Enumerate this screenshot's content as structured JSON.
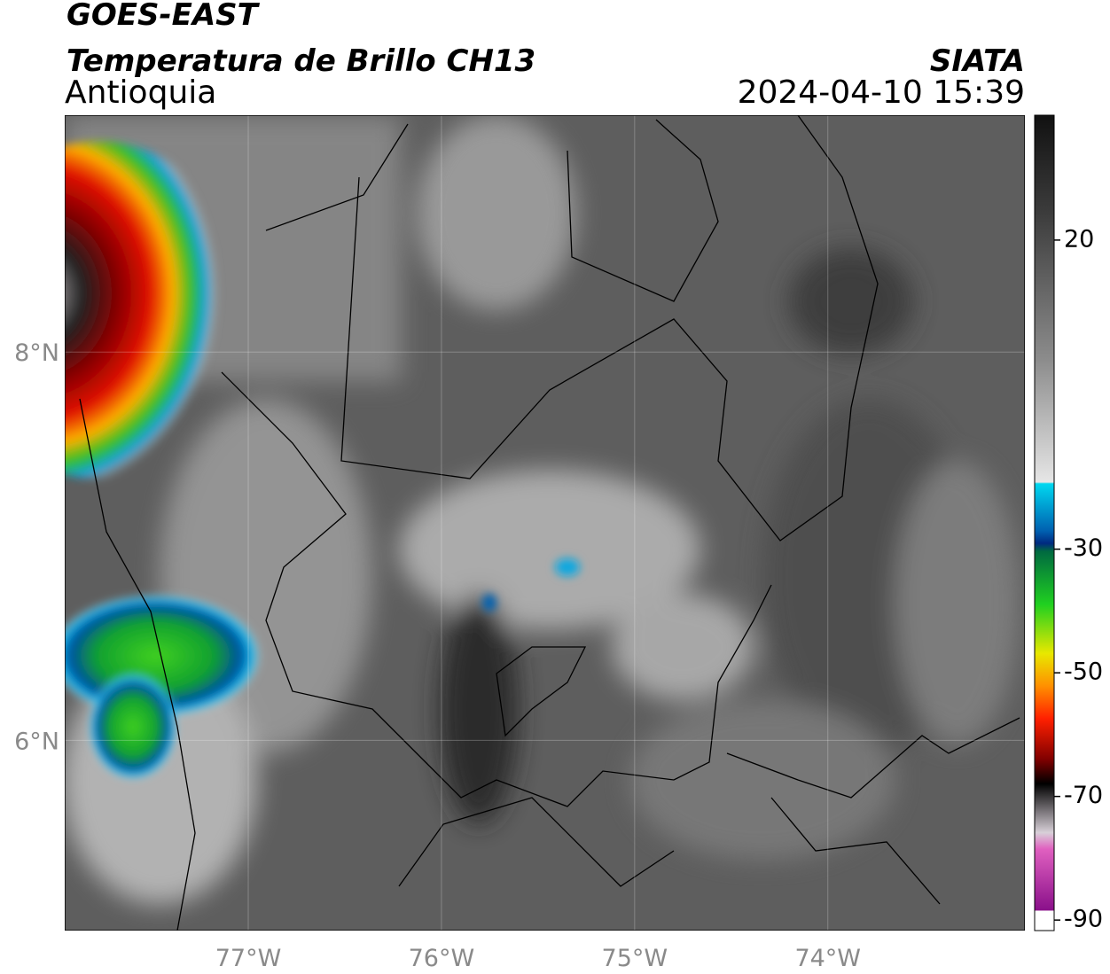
{
  "header": {
    "satellite": "GOES-EAST",
    "product": "Temperatura de Brillo CH13",
    "region": "Antioquia",
    "source": "SIATA",
    "datetime": "2024-04-10 15:39"
  },
  "map": {
    "lon_range": [
      -77.95,
      -72.98
    ],
    "lat_range": [
      5.02,
      9.22
    ],
    "lon_ticks": [
      {
        "value": -77,
        "label": "77°W"
      },
      {
        "value": -76,
        "label": "76°W"
      },
      {
        "value": -75,
        "label": "75°W"
      },
      {
        "value": -74,
        "label": "74°W"
      }
    ],
    "lat_ticks": [
      {
        "value": 8,
        "label": "8°N"
      },
      {
        "value": 6,
        "label": "6°N"
      }
    ],
    "grid": true
  },
  "colorbar": {
    "range": [
      -91.7,
      40.2
    ],
    "ticks": [
      20,
      -30,
      -50,
      -70,
      -90
    ]
  }
}
